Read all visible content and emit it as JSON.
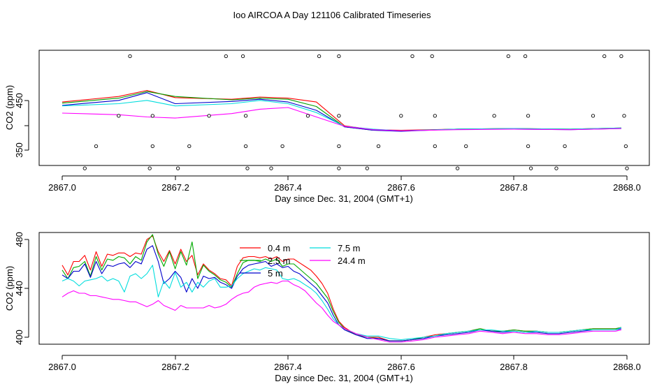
{
  "figure_title": "Ioo AIRCOA A  Day 121106  Calibrated Timeseries",
  "chart_data": [
    {
      "type": "line",
      "title": "Ioo AIRCOA A  Day 121106  Calibrated Timeseries",
      "xlabel": "Day since Dec. 31, 2004 (GMT+1)",
      "ylabel": "CO2 (ppm)",
      "xlim": [
        2867.0,
        2868.0
      ],
      "ylim": [
        325,
        555
      ],
      "x_ticks": [
        "2867.0",
        "2867.2",
        "2867.4",
        "2867.6",
        "2867.8",
        "2868.0"
      ],
      "y_ticks": [
        "350",
        "450"
      ],
      "grid": false,
      "legend": "none",
      "x": [
        2867.0,
        2867.1,
        2867.15,
        2867.2,
        2867.3,
        2867.35,
        2867.4,
        2867.45,
        2867.5,
        2867.55,
        2867.6,
        2867.7,
        2867.8,
        2867.9,
        2867.99
      ],
      "series": [
        {
          "color": "#ff0000",
          "values": [
            455,
            465,
            476,
            463,
            460,
            464,
            462,
            455,
            412,
            405,
            404,
            406,
            407,
            406,
            408
          ]
        },
        {
          "color": "#00a000",
          "values": [
            453,
            462,
            474,
            465,
            459,
            462,
            460,
            447,
            410,
            404,
            403,
            406,
            407,
            406,
            408
          ]
        },
        {
          "color": "#0000cc",
          "values": [
            449,
            458,
            472,
            452,
            456,
            460,
            455,
            440,
            410,
            404,
            402,
            406,
            406,
            405,
            407
          ]
        },
        {
          "color": "#00dddd",
          "values": [
            448,
            452,
            458,
            448,
            452,
            458,
            452,
            436,
            411,
            406,
            403,
            406,
            407,
            406,
            408
          ]
        },
        {
          "color": "#ff00ff",
          "values": [
            435,
            432,
            428,
            426,
            434,
            442,
            445,
            428,
            411,
            405,
            403,
            405,
            406,
            405,
            407
          ]
        }
      ],
      "markers": {
        "symbol": "open-circle",
        "x": [
          2867.04,
          2867.06,
          2867.1,
          2867.12,
          2867.155,
          2867.16,
          2867.16,
          2867.205,
          2867.225,
          2867.26,
          2867.29,
          2867.32,
          2867.325,
          2867.325,
          2867.328,
          2867.37,
          2867.39,
          2867.435,
          2867.455,
          2867.49,
          2867.49,
          2867.49,
          2867.49,
          2867.54,
          2867.56,
          2867.6,
          2867.62,
          2867.655,
          2867.66,
          2867.66,
          2867.7,
          2867.715,
          2867.765,
          2867.79,
          2867.82,
          2867.825,
          2867.825,
          2867.83,
          2867.875,
          2867.89,
          2867.94,
          2867.96,
          2867.99,
          2867.995,
          2867.998,
          2868.0
        ],
        "y": [
          335,
          375,
          430,
          538,
          335,
          375,
          430,
          335,
          375,
          430,
          538,
          538,
          430,
          375,
          335,
          335,
          375,
          430,
          538,
          538,
          430,
          375,
          335,
          335,
          375,
          430,
          538,
          538,
          430,
          375,
          335,
          375,
          430,
          538,
          538,
          430,
          375,
          335,
          335,
          375,
          430,
          538,
          538,
          430,
          375,
          335
        ]
      }
    },
    {
      "type": "line",
      "xlabel": "Day since Dec. 31, 2004 (GMT+1)",
      "ylabel": "CO2 (ppm)",
      "xlim": [
        2867.0,
        2868.0
      ],
      "ylim": [
        396,
        484
      ],
      "x_ticks": [
        "2867.0",
        "2867.2",
        "2867.4",
        "2867.6",
        "2867.8",
        "2868.0"
      ],
      "y_ticks": [
        "400",
        "440",
        "480"
      ],
      "grid": false,
      "legend": "top-center",
      "x": [
        2867.0,
        2867.01,
        2867.02,
        2867.03,
        2867.04,
        2867.05,
        2867.06,
        2867.07,
        2867.08,
        2867.09,
        2867.1,
        2867.11,
        2867.12,
        2867.13,
        2867.14,
        2867.15,
        2867.16,
        2867.17,
        2867.18,
        2867.19,
        2867.2,
        2867.21,
        2867.22,
        2867.23,
        2867.24,
        2867.25,
        2867.26,
        2867.27,
        2867.28,
        2867.29,
        2867.3,
        2867.31,
        2867.32,
        2867.33,
        2867.34,
        2867.35,
        2867.36,
        2867.37,
        2867.38,
        2867.39,
        2867.4,
        2867.41,
        2867.42,
        2867.43,
        2867.44,
        2867.45,
        2867.46,
        2867.47,
        2867.48,
        2867.49,
        2867.5,
        2867.52,
        2867.54,
        2867.56,
        2867.58,
        2867.6,
        2867.62,
        2867.64,
        2867.66,
        2867.68,
        2867.7,
        2867.72,
        2867.74,
        2867.76,
        2867.78,
        2867.8,
        2867.82,
        2867.84,
        2867.86,
        2867.88,
        2867.9,
        2867.92,
        2867.94,
        2867.96,
        2867.98,
        2867.99
      ],
      "series": [
        {
          "name": "0.4 m",
          "color": "#ff0000",
          "values": [
            459,
            451,
            462,
            462,
            467,
            455,
            470,
            458,
            468,
            467,
            469,
            469,
            466,
            469,
            468,
            480,
            483,
            470,
            462,
            471,
            460,
            472,
            462,
            467,
            451,
            460,
            455,
            452,
            448,
            447,
            442,
            458,
            465,
            466,
            466,
            465,
            466,
            464,
            466,
            462,
            464,
            464,
            461,
            458,
            455,
            450,
            444,
            436,
            423,
            413,
            408,
            402,
            400,
            400,
            397,
            397,
            398,
            400,
            402,
            403,
            404,
            405,
            407,
            405,
            405,
            406,
            405,
            405,
            404,
            404,
            405,
            406,
            407,
            407,
            407,
            408
          ]
        },
        {
          "name": "2.5 m",
          "color": "#00aa00",
          "values": [
            455,
            448,
            457,
            458,
            462,
            450,
            466,
            455,
            464,
            463,
            466,
            465,
            460,
            466,
            463,
            478,
            484,
            468,
            458,
            470,
            456,
            470,
            459,
            478,
            448,
            459,
            454,
            451,
            447,
            445,
            441,
            452,
            461,
            463,
            463,
            462,
            464,
            462,
            464,
            458,
            460,
            460,
            456,
            452,
            448,
            444,
            438,
            432,
            421,
            412,
            407,
            402,
            400,
            399,
            397,
            397,
            398,
            400,
            401,
            403,
            404,
            405,
            407,
            405,
            405,
            406,
            405,
            405,
            404,
            404,
            405,
            406,
            407,
            407,
            407,
            408
          ]
        },
        {
          "name": "5 m",
          "color": "#0000cc",
          "values": [
            451,
            448,
            454,
            454,
            460,
            449,
            462,
            452,
            459,
            458,
            460,
            461,
            457,
            462,
            460,
            472,
            475,
            462,
            444,
            448,
            454,
            449,
            437,
            448,
            440,
            450,
            448,
            449,
            445,
            443,
            440,
            450,
            456,
            459,
            460,
            461,
            462,
            458,
            460,
            457,
            458,
            454,
            452,
            448,
            444,
            440,
            434,
            428,
            418,
            410,
            406,
            402,
            399,
            399,
            397,
            397,
            398,
            399,
            401,
            402,
            403,
            404,
            406,
            405,
            404,
            405,
            404,
            404,
            403,
            403,
            404,
            405,
            406,
            406,
            406,
            407
          ]
        },
        {
          "name": "7.5 m",
          "color": "#00dddd",
          "values": [
            446,
            448,
            446,
            442,
            446,
            447,
            448,
            450,
            446,
            448,
            446,
            437,
            450,
            452,
            448,
            452,
            459,
            433,
            446,
            440,
            453,
            441,
            445,
            437,
            445,
            441,
            446,
            448,
            441,
            441,
            442,
            448,
            452,
            454,
            456,
            455,
            457,
            456,
            455,
            448,
            447,
            448,
            446,
            443,
            440,
            436,
            430,
            423,
            415,
            410,
            407,
            403,
            401,
            401,
            399,
            398,
            399,
            400,
            401,
            403,
            404,
            405,
            406,
            406,
            405,
            405,
            404,
            405,
            404,
            404,
            405,
            406,
            406,
            406,
            406,
            408
          ]
        },
        {
          "name": "24.4 m",
          "color": "#ff00ff",
          "values": [
            433,
            436,
            438,
            436,
            436,
            434,
            434,
            433,
            432,
            431,
            431,
            430,
            429,
            429,
            427,
            425,
            427,
            430,
            426,
            424,
            422,
            426,
            424,
            424,
            424,
            424,
            426,
            424,
            425,
            427,
            431,
            434,
            436,
            437,
            441,
            443,
            444,
            445,
            444,
            446,
            446,
            443,
            441,
            438,
            433,
            428,
            424,
            418,
            413,
            410,
            407,
            403,
            400,
            398,
            396,
            396,
            397,
            398,
            400,
            401,
            402,
            403,
            405,
            404,
            403,
            404,
            403,
            403,
            402,
            402,
            403,
            404,
            405,
            405,
            405,
            406
          ]
        }
      ]
    }
  ]
}
